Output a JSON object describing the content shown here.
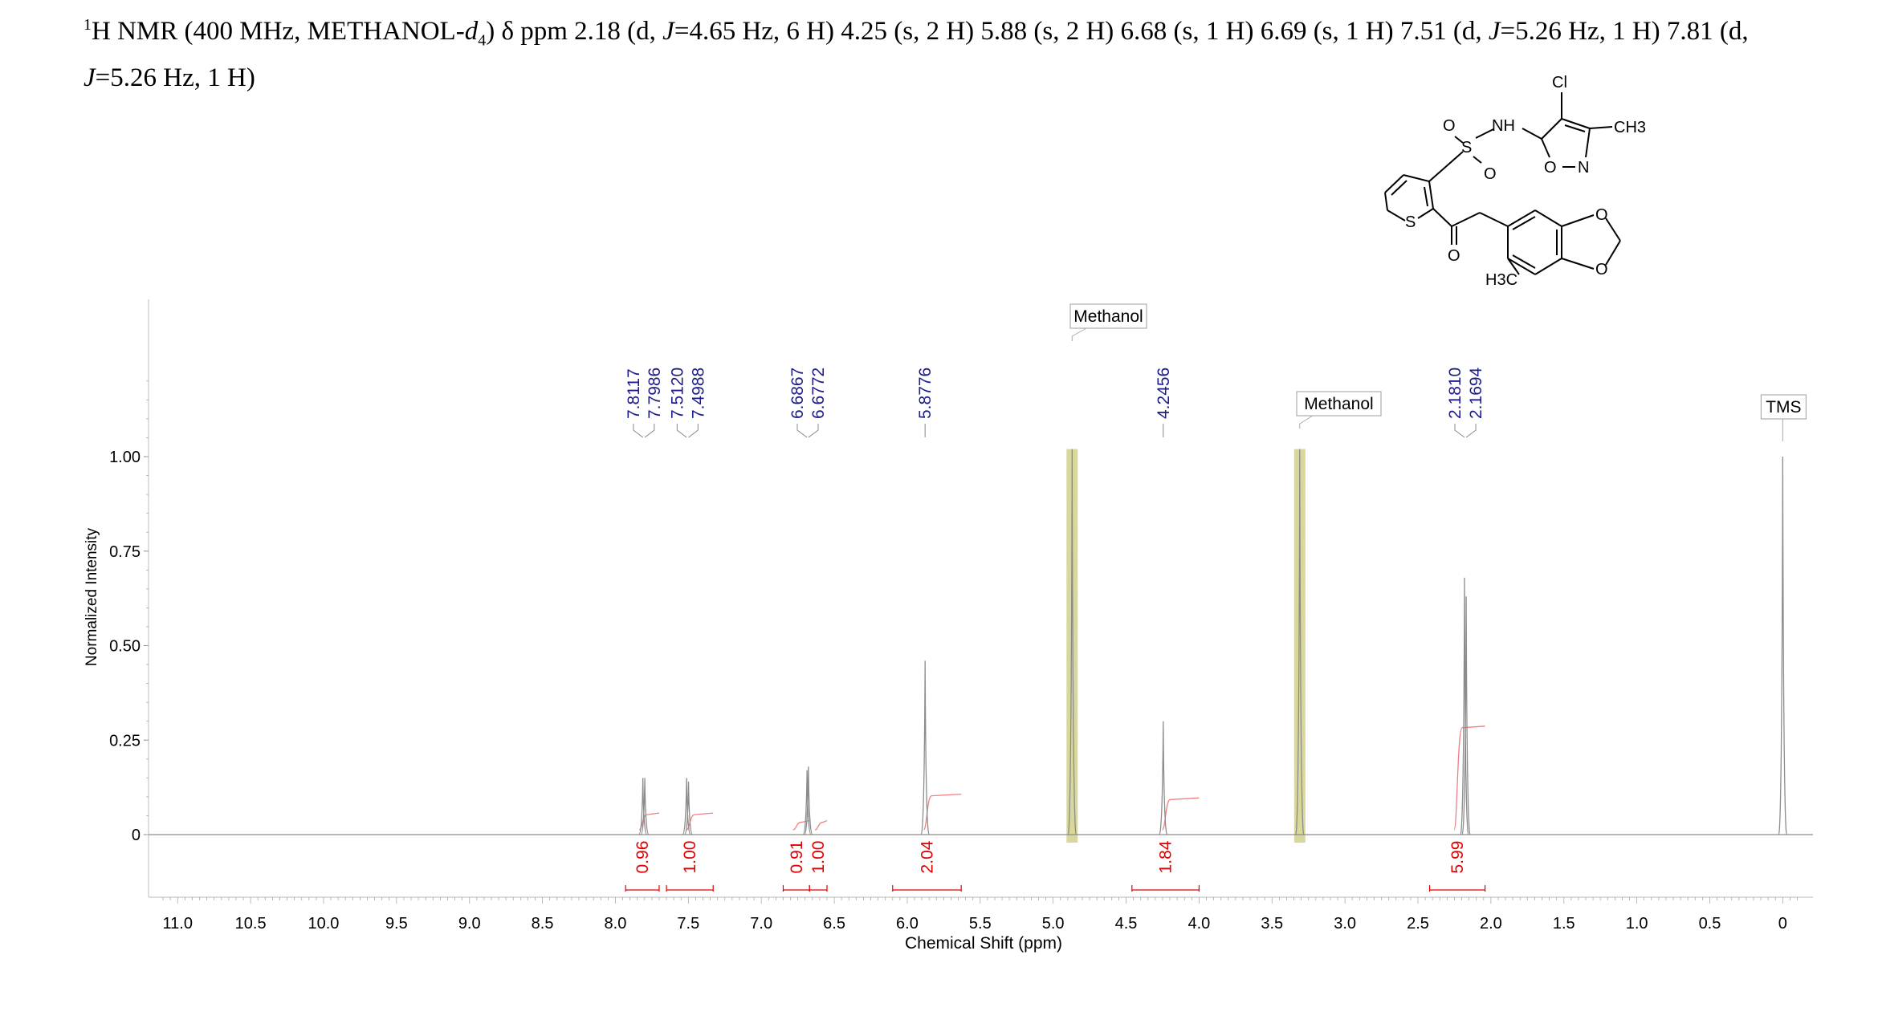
{
  "header": {
    "h_sup": "1",
    "line_a": "H NMR (400 MHz, METHANOL-",
    "d": "d",
    "d_sub": "4",
    "line_b": ") δ ppm 2.18 (d, ",
    "j1": "J",
    "line_c": "=4.65 Hz, 6 H) 4.25 (s, 2 H) 5.88 (s, 2 H) 6.68 (s, 1 H) 6.69 (s, 1 H) 7.51 (d,  ",
    "j2": "J",
    "line_d": "=5.26 Hz, 1 H) 7.81 (d,",
    "j3": "J",
    "line_e": "=5.26 Hz, 1 H)"
  },
  "structure": {
    "atoms": [
      "Cl",
      "NH",
      "CH3",
      "O",
      "S",
      "O",
      "O",
      "N",
      "S",
      "O",
      "O",
      "O",
      "H3C"
    ]
  },
  "chart_data": {
    "type": "line",
    "xlabel": "Chemical Shift (ppm)",
    "ylabel": "Normalized Intensity",
    "xlim": [
      11.2,
      -0.2
    ],
    "ylim": [
      -0.16,
      1.42
    ],
    "x_ticks": [
      "11.0",
      "10.5",
      "10.0",
      "9.5",
      "9.0",
      "8.5",
      "8.0",
      "7.5",
      "7.0",
      "6.5",
      "6.0",
      "5.5",
      "5.0",
      "4.5",
      "4.0",
      "3.5",
      "3.0",
      "2.5",
      "2.0",
      "1.5",
      "1.0",
      "0.5",
      "0"
    ],
    "x_tick_values": [
      11.0,
      10.5,
      10.0,
      9.5,
      9.0,
      8.5,
      8.0,
      7.5,
      7.0,
      6.5,
      6.0,
      5.5,
      5.0,
      4.5,
      4.0,
      3.5,
      3.0,
      2.5,
      2.0,
      1.5,
      1.0,
      0.5,
      0
    ],
    "y_ticks": [
      "0",
      "0.25",
      "0.50",
      "0.75",
      "1.00"
    ],
    "y_tick_values": [
      0,
      0.25,
      0.5,
      0.75,
      1.0
    ],
    "peaks": [
      {
        "x": 7.8117,
        "y": 0.15
      },
      {
        "x": 7.7986,
        "y": 0.15
      },
      {
        "x": 7.512,
        "y": 0.15
      },
      {
        "x": 7.4988,
        "y": 0.14
      },
      {
        "x": 6.6867,
        "y": 0.17
      },
      {
        "x": 6.6772,
        "y": 0.18
      },
      {
        "x": 5.8776,
        "y": 0.46
      },
      {
        "x": 4.87,
        "y": 1.02
      },
      {
        "x": 4.2456,
        "y": 0.3
      },
      {
        "x": 3.31,
        "y": 1.02
      },
      {
        "x": 2.181,
        "y": 0.68
      },
      {
        "x": 2.1694,
        "y": 0.63
      },
      {
        "x": 0.0,
        "y": 1.0
      }
    ],
    "peak_labels": [
      {
        "group": [
          7.8117,
          7.7986
        ],
        "labels": [
          "7.8117",
          "7.7986"
        ]
      },
      {
        "group": [
          7.512,
          7.4988
        ],
        "labels": [
          "7.5120",
          "7.4988"
        ]
      },
      {
        "group": [
          6.6867,
          6.6772
        ],
        "labels": [
          "6.6867",
          "6.6772"
        ]
      },
      {
        "group": [
          5.8776
        ],
        "labels": [
          "5.8776"
        ]
      },
      {
        "group": [
          4.2456
        ],
        "labels": [
          "4.2456"
        ]
      },
      {
        "group": [
          2.181,
          2.1694
        ],
        "labels": [
          "2.1810",
          "2.1694"
        ]
      }
    ],
    "solvent_regions": [
      {
        "x": 4.87,
        "label": "Methanol"
      },
      {
        "x": 3.31,
        "label": "Methanol"
      }
    ],
    "reference": {
      "x": 0.0,
      "label": "TMS"
    },
    "integrals": [
      {
        "from": 7.93,
        "to": 7.7,
        "value": "0.96",
        "curve_height": 0.04
      },
      {
        "from": 7.65,
        "to": 7.33,
        "value": "1.00",
        "curve_height": 0.04
      },
      {
        "from": 6.85,
        "to": 6.67,
        "value": "0.91",
        "curve_height": 0.02
      },
      {
        "from": 6.67,
        "to": 6.55,
        "value": "1.00",
        "curve_height": 0.02
      },
      {
        "from": 6.1,
        "to": 5.63,
        "value": "2.04",
        "curve_height": 0.09
      },
      {
        "from": 4.46,
        "to": 4.0,
        "value": "1.84",
        "curve_height": 0.08
      },
      {
        "from": 2.42,
        "to": 2.04,
        "value": "5.99",
        "curve_height": 0.27
      }
    ],
    "colors": {
      "spectrum": "#8c8c8c",
      "integral": "#e00000",
      "peak_label": "#1c1c8c",
      "solvent_fill": "#d8d89c"
    }
  }
}
